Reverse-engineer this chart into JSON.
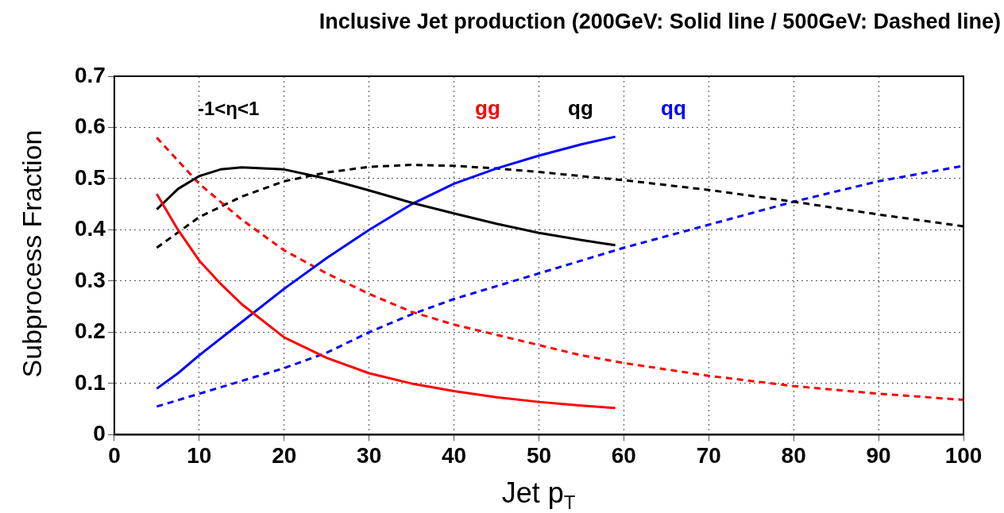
{
  "chart_data": {
    "type": "line",
    "title": "Inclusive Jet production (200GeV: Solid line / 500GeV: Dashed line)",
    "xlabel": "Jet p$_{T}$",
    "ylabel": "Subprocess Fraction",
    "xlim": [
      0,
      100
    ],
    "xticks": [
      0,
      10,
      20,
      30,
      40,
      50,
      60,
      70,
      80,
      90,
      100
    ],
    "ylim": [
      0,
      0.7
    ],
    "yticks": [
      0,
      0.1,
      0.2,
      0.3,
      0.4,
      0.5,
      0.6,
      0.7
    ],
    "grid": true,
    "annotations": [
      "-1<η<1"
    ],
    "series": [
      {
        "name": "gg",
        "color": "#ff0000",
        "line_style": "solid",
        "x": [
          5,
          7.5,
          10,
          12.5,
          15,
          20,
          25,
          30,
          35,
          40,
          45,
          50,
          55,
          59
        ],
        "values": [
          0.47,
          0.4,
          0.34,
          0.295,
          0.255,
          0.19,
          0.15,
          0.12,
          0.1,
          0.085,
          0.073,
          0.064,
          0.057,
          0.052
        ]
      },
      {
        "name": "qg",
        "color": "#000000",
        "line_style": "solid",
        "x": [
          5,
          7.5,
          10,
          12.5,
          15,
          20,
          25,
          30,
          35,
          40,
          45,
          50,
          55,
          59
        ],
        "values": [
          0.44,
          0.48,
          0.505,
          0.518,
          0.522,
          0.518,
          0.5,
          0.477,
          0.453,
          0.432,
          0.412,
          0.394,
          0.38,
          0.37
        ]
      },
      {
        "name": "qq",
        "color": "#0000ff",
        "line_style": "solid",
        "x": [
          5,
          7.5,
          10,
          15,
          20,
          25,
          30,
          35,
          40,
          45,
          50,
          55,
          59
        ],
        "values": [
          0.09,
          0.12,
          0.155,
          0.22,
          0.285,
          0.345,
          0.4,
          0.45,
          0.49,
          0.52,
          0.545,
          0.567,
          0.582
        ]
      },
      {
        "color": "#ff0000",
        "line_style": "dashed",
        "x": [
          5,
          10,
          15,
          20,
          25,
          30,
          35,
          40,
          45,
          50,
          55,
          60,
          70,
          80,
          90,
          100
        ],
        "values": [
          0.58,
          0.49,
          0.42,
          0.36,
          0.315,
          0.275,
          0.24,
          0.215,
          0.195,
          0.175,
          0.155,
          0.14,
          0.115,
          0.095,
          0.08,
          0.068
        ]
      },
      {
        "color": "#000000",
        "line_style": "dashed",
        "x": [
          5,
          10,
          15,
          20,
          25,
          30,
          35,
          40,
          45,
          50,
          55,
          60,
          70,
          80,
          90,
          100
        ],
        "values": [
          0.365,
          0.425,
          0.465,
          0.495,
          0.512,
          0.523,
          0.527,
          0.525,
          0.52,
          0.513,
          0.505,
          0.497,
          0.478,
          0.455,
          0.43,
          0.407
        ]
      },
      {
        "color": "#0000ff",
        "line_style": "dashed",
        "x": [
          5,
          10,
          15,
          20,
          25,
          30,
          35,
          40,
          45,
          50,
          55,
          60,
          70,
          80,
          90,
          100
        ],
        "values": [
          0.055,
          0.08,
          0.105,
          0.13,
          0.16,
          0.2,
          0.235,
          0.265,
          0.29,
          0.315,
          0.34,
          0.365,
          0.41,
          0.455,
          0.495,
          0.525
        ]
      }
    ]
  }
}
